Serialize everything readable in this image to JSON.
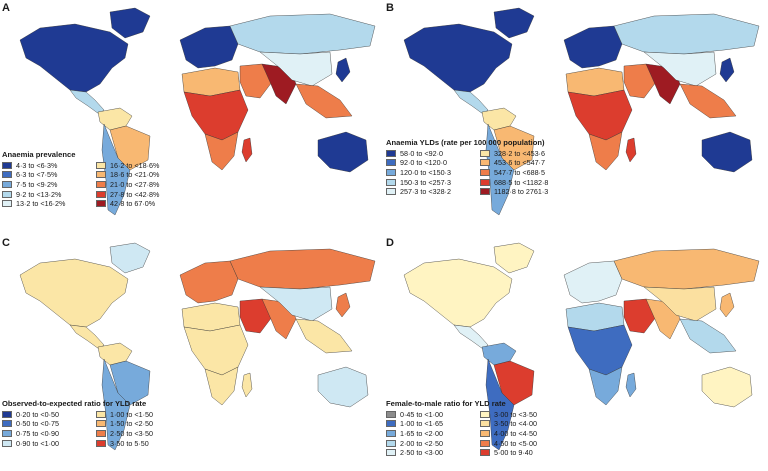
{
  "panels": [
    {
      "letter": "A",
      "legend_title": "Anaemia prevalence",
      "legend_items": [
        {
          "label": "4·3 to <6·3%",
          "color": "#1f3a93"
        },
        {
          "label": "6·3 to <7·5%",
          "color": "#3e6cc0"
        },
        {
          "label": "7·5 to <9·2%",
          "color": "#77aadb"
        },
        {
          "label": "9·2 to <13·2%",
          "color": "#b3d9ec"
        },
        {
          "label": "13·2 to <16·2%",
          "color": "#e0f1f6"
        },
        {
          "label": "16·2 to <18·6%",
          "color": "#fbe6a6"
        },
        {
          "label": "18·6 to <21·0%",
          "color": "#f8b872"
        },
        {
          "label": "21·0 to <27·8%",
          "color": "#ee7d4a"
        },
        {
          "label": "27·8 to <42·8%",
          "color": "#dc3d2e"
        },
        {
          "label": "42·8 to 67·0%",
          "color": "#9e1b22"
        }
      ],
      "regions": {
        "north_america": "#1f3a93",
        "greenland": "#1f3a93",
        "central_america": "#b3d9ec",
        "south_america_north": "#fbe6a6",
        "brazil": "#f8b872",
        "south_america_south": "#77aadb",
        "europe": "#1f3a93",
        "russia": "#b3d9ec",
        "north_africa": "#f8b872",
        "sub_saharan_africa": "#dc3d2e",
        "africa_south": "#ee7d4a",
        "middle_east": "#ee7d4a",
        "south_asia": "#9e1b22",
        "china": "#e0f1f6",
        "southeast_asia": "#ee7d4a",
        "japan": "#1f3a93",
        "australia": "#1f3a93",
        "madagascar": "#dc3d2e"
      }
    },
    {
      "letter": "B",
      "legend_title": "Anaemia YLDs (rate per 100 000 population)",
      "legend_items": [
        {
          "label": "58·0 to <92·0",
          "color": "#1f3a93"
        },
        {
          "label": "92·0 to <120·0",
          "color": "#3e6cc0"
        },
        {
          "label": "120·0 to <150·3",
          "color": "#77aadb"
        },
        {
          "label": "150·3 to <257·3",
          "color": "#b3d9ec"
        },
        {
          "label": "257·3 to <328·2",
          "color": "#e0f1f6"
        },
        {
          "label": "328·2 to <453·6",
          "color": "#fbe6a6"
        },
        {
          "label": "453·6 to <547·7",
          "color": "#f8b872"
        },
        {
          "label": "547·7 to <688·5",
          "color": "#ee7d4a"
        },
        {
          "label": "688·5 to <1182·8",
          "color": "#dc3d2e"
        },
        {
          "label": "1182·8 to 2761·3",
          "color": "#9e1b22"
        }
      ],
      "regions": {
        "north_america": "#1f3a93",
        "greenland": "#1f3a93",
        "central_america": "#b3d9ec",
        "south_america_north": "#fbe6a6",
        "brazil": "#f8b872",
        "south_america_south": "#77aadb",
        "europe": "#1f3a93",
        "russia": "#b3d9ec",
        "north_africa": "#f8b872",
        "sub_saharan_africa": "#dc3d2e",
        "africa_south": "#ee7d4a",
        "middle_east": "#ee7d4a",
        "south_asia": "#9e1b22",
        "china": "#e0f1f6",
        "southeast_asia": "#ee7d4a",
        "japan": "#1f3a93",
        "australia": "#1f3a93",
        "madagascar": "#dc3d2e"
      }
    },
    {
      "letter": "C",
      "legend_title": "Observed-to-expected ratio for YLD rate",
      "legend_items": [
        {
          "label": "0·20 to <0·50",
          "color": "#1f3a93"
        },
        {
          "label": "0·50 to <0·75",
          "color": "#3e6cc0"
        },
        {
          "label": "0·75 to <0·90",
          "color": "#77aadb"
        },
        {
          "label": "0·90 to <1·00",
          "color": "#cfe8f3"
        },
        {
          "label": "1·00 to <1·50",
          "color": "#fbe6a6"
        },
        {
          "label": "1·50 to <2·50",
          "color": "#f8b872"
        },
        {
          "label": "2·50 to <3·50",
          "color": "#ee7d4a"
        },
        {
          "label": "3·50 to 5·50",
          "color": "#dc3d2e"
        }
      ],
      "regions": {
        "north_america": "#fbe6a6",
        "greenland": "#cfe8f3",
        "central_america": "#fbe6a6",
        "south_america_north": "#fbe6a6",
        "brazil": "#77aadb",
        "south_america_south": "#77aadb",
        "europe": "#ee7d4a",
        "russia": "#ee7d4a",
        "north_africa": "#fbe6a6",
        "sub_saharan_africa": "#fbe6a6",
        "africa_south": "#fbe6a6",
        "middle_east": "#dc3d2e",
        "south_asia": "#ee7d4a",
        "china": "#cfe8f3",
        "southeast_asia": "#fbe6a6",
        "japan": "#ee7d4a",
        "australia": "#cfe8f3",
        "madagascar": "#fbe6a6"
      }
    },
    {
      "letter": "D",
      "legend_title": "Female-to-male ratio for YLD rate",
      "legend_items": [
        {
          "label": "0·45 to <1·00",
          "color": "#8c8c8c"
        },
        {
          "label": "1·00 to <1·65",
          "color": "#3e6cc0"
        },
        {
          "label": "1·65 to <2·00",
          "color": "#77aadb"
        },
        {
          "label": "2·00 to <2·50",
          "color": "#b3d9ec"
        },
        {
          "label": "2·50 to <3·00",
          "color": "#e0f1f6"
        },
        {
          "label": "3·00 to <3·50",
          "color": "#fff4c2"
        },
        {
          "label": "3·50 to <4·00",
          "color": "#fbe0a0"
        },
        {
          "label": "4·00 to <4·50",
          "color": "#f8b872"
        },
        {
          "label": "4·50 to <5·00",
          "color": "#ee7d4a"
        },
        {
          "label": "5·00 to 9·40",
          "color": "#dc3d2e"
        }
      ],
      "regions": {
        "north_america": "#fff4c2",
        "greenland": "#fff4c2",
        "central_america": "#e0f1f6",
        "south_america_north": "#77aadb",
        "brazil": "#dc3d2e",
        "south_america_south": "#3e6cc0",
        "europe": "#e0f1f6",
        "russia": "#f8b872",
        "north_africa": "#b3d9ec",
        "sub_saharan_africa": "#3e6cc0",
        "africa_south": "#77aadb",
        "middle_east": "#dc3d2e",
        "south_asia": "#f8b872",
        "china": "#fbe0a0",
        "southeast_asia": "#b3d9ec",
        "japan": "#f8b872",
        "australia": "#fff4c2",
        "madagascar": "#77aadb"
      }
    }
  ]
}
